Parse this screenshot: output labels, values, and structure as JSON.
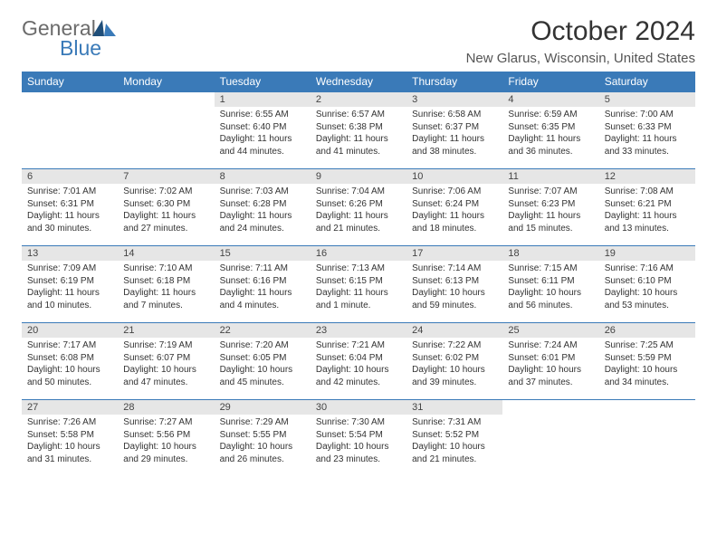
{
  "brand": {
    "part1": "General",
    "part2": "Blue"
  },
  "title": "October 2024",
  "location": "New Glarus, Wisconsin, United States",
  "colors": {
    "accent": "#3a7ab8",
    "daynum_bg": "#e6e6e6",
    "text": "#333333",
    "logo_gray": "#6b6b6b"
  },
  "weekdays": [
    "Sunday",
    "Monday",
    "Tuesday",
    "Wednesday",
    "Thursday",
    "Friday",
    "Saturday"
  ],
  "weeks": [
    [
      null,
      null,
      {
        "n": "1",
        "sunrise": "Sunrise: 6:55 AM",
        "sunset": "Sunset: 6:40 PM",
        "daylight": "Daylight: 11 hours and 44 minutes."
      },
      {
        "n": "2",
        "sunrise": "Sunrise: 6:57 AM",
        "sunset": "Sunset: 6:38 PM",
        "daylight": "Daylight: 11 hours and 41 minutes."
      },
      {
        "n": "3",
        "sunrise": "Sunrise: 6:58 AM",
        "sunset": "Sunset: 6:37 PM",
        "daylight": "Daylight: 11 hours and 38 minutes."
      },
      {
        "n": "4",
        "sunrise": "Sunrise: 6:59 AM",
        "sunset": "Sunset: 6:35 PM",
        "daylight": "Daylight: 11 hours and 36 minutes."
      },
      {
        "n": "5",
        "sunrise": "Sunrise: 7:00 AM",
        "sunset": "Sunset: 6:33 PM",
        "daylight": "Daylight: 11 hours and 33 minutes."
      }
    ],
    [
      {
        "n": "6",
        "sunrise": "Sunrise: 7:01 AM",
        "sunset": "Sunset: 6:31 PM",
        "daylight": "Daylight: 11 hours and 30 minutes."
      },
      {
        "n": "7",
        "sunrise": "Sunrise: 7:02 AM",
        "sunset": "Sunset: 6:30 PM",
        "daylight": "Daylight: 11 hours and 27 minutes."
      },
      {
        "n": "8",
        "sunrise": "Sunrise: 7:03 AM",
        "sunset": "Sunset: 6:28 PM",
        "daylight": "Daylight: 11 hours and 24 minutes."
      },
      {
        "n": "9",
        "sunrise": "Sunrise: 7:04 AM",
        "sunset": "Sunset: 6:26 PM",
        "daylight": "Daylight: 11 hours and 21 minutes."
      },
      {
        "n": "10",
        "sunrise": "Sunrise: 7:06 AM",
        "sunset": "Sunset: 6:24 PM",
        "daylight": "Daylight: 11 hours and 18 minutes."
      },
      {
        "n": "11",
        "sunrise": "Sunrise: 7:07 AM",
        "sunset": "Sunset: 6:23 PM",
        "daylight": "Daylight: 11 hours and 15 minutes."
      },
      {
        "n": "12",
        "sunrise": "Sunrise: 7:08 AM",
        "sunset": "Sunset: 6:21 PM",
        "daylight": "Daylight: 11 hours and 13 minutes."
      }
    ],
    [
      {
        "n": "13",
        "sunrise": "Sunrise: 7:09 AM",
        "sunset": "Sunset: 6:19 PM",
        "daylight": "Daylight: 11 hours and 10 minutes."
      },
      {
        "n": "14",
        "sunrise": "Sunrise: 7:10 AM",
        "sunset": "Sunset: 6:18 PM",
        "daylight": "Daylight: 11 hours and 7 minutes."
      },
      {
        "n": "15",
        "sunrise": "Sunrise: 7:11 AM",
        "sunset": "Sunset: 6:16 PM",
        "daylight": "Daylight: 11 hours and 4 minutes."
      },
      {
        "n": "16",
        "sunrise": "Sunrise: 7:13 AM",
        "sunset": "Sunset: 6:15 PM",
        "daylight": "Daylight: 11 hours and 1 minute."
      },
      {
        "n": "17",
        "sunrise": "Sunrise: 7:14 AM",
        "sunset": "Sunset: 6:13 PM",
        "daylight": "Daylight: 10 hours and 59 minutes."
      },
      {
        "n": "18",
        "sunrise": "Sunrise: 7:15 AM",
        "sunset": "Sunset: 6:11 PM",
        "daylight": "Daylight: 10 hours and 56 minutes."
      },
      {
        "n": "19",
        "sunrise": "Sunrise: 7:16 AM",
        "sunset": "Sunset: 6:10 PM",
        "daylight": "Daylight: 10 hours and 53 minutes."
      }
    ],
    [
      {
        "n": "20",
        "sunrise": "Sunrise: 7:17 AM",
        "sunset": "Sunset: 6:08 PM",
        "daylight": "Daylight: 10 hours and 50 minutes."
      },
      {
        "n": "21",
        "sunrise": "Sunrise: 7:19 AM",
        "sunset": "Sunset: 6:07 PM",
        "daylight": "Daylight: 10 hours and 47 minutes."
      },
      {
        "n": "22",
        "sunrise": "Sunrise: 7:20 AM",
        "sunset": "Sunset: 6:05 PM",
        "daylight": "Daylight: 10 hours and 45 minutes."
      },
      {
        "n": "23",
        "sunrise": "Sunrise: 7:21 AM",
        "sunset": "Sunset: 6:04 PM",
        "daylight": "Daylight: 10 hours and 42 minutes."
      },
      {
        "n": "24",
        "sunrise": "Sunrise: 7:22 AM",
        "sunset": "Sunset: 6:02 PM",
        "daylight": "Daylight: 10 hours and 39 minutes."
      },
      {
        "n": "25",
        "sunrise": "Sunrise: 7:24 AM",
        "sunset": "Sunset: 6:01 PM",
        "daylight": "Daylight: 10 hours and 37 minutes."
      },
      {
        "n": "26",
        "sunrise": "Sunrise: 7:25 AM",
        "sunset": "Sunset: 5:59 PM",
        "daylight": "Daylight: 10 hours and 34 minutes."
      }
    ],
    [
      {
        "n": "27",
        "sunrise": "Sunrise: 7:26 AM",
        "sunset": "Sunset: 5:58 PM",
        "daylight": "Daylight: 10 hours and 31 minutes."
      },
      {
        "n": "28",
        "sunrise": "Sunrise: 7:27 AM",
        "sunset": "Sunset: 5:56 PM",
        "daylight": "Daylight: 10 hours and 29 minutes."
      },
      {
        "n": "29",
        "sunrise": "Sunrise: 7:29 AM",
        "sunset": "Sunset: 5:55 PM",
        "daylight": "Daylight: 10 hours and 26 minutes."
      },
      {
        "n": "30",
        "sunrise": "Sunrise: 7:30 AM",
        "sunset": "Sunset: 5:54 PM",
        "daylight": "Daylight: 10 hours and 23 minutes."
      },
      {
        "n": "31",
        "sunrise": "Sunrise: 7:31 AM",
        "sunset": "Sunset: 5:52 PM",
        "daylight": "Daylight: 10 hours and 21 minutes."
      },
      null,
      null
    ]
  ]
}
